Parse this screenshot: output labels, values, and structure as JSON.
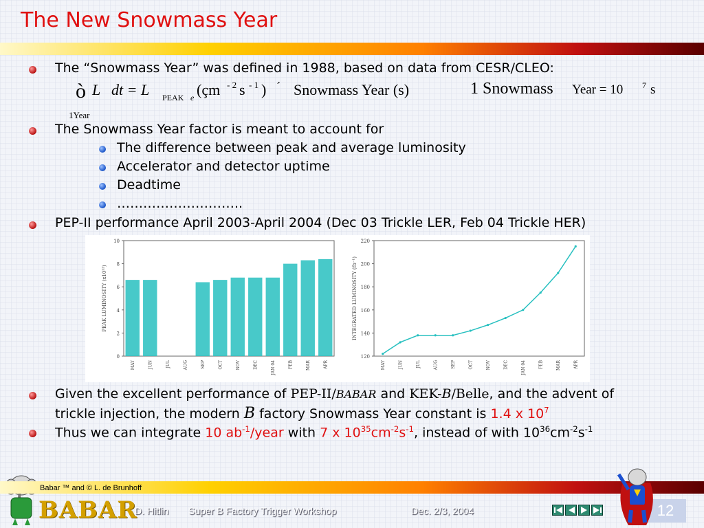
{
  "title": "The New Snowmass Year",
  "bullets": {
    "b1": "The “Snowmass Year” was defined in 1988, based on data from CESR/CLEO:",
    "formula": {
      "integral": "ò",
      "L": "L",
      "dt": "dt = L",
      "peak": "PEAK",
      "e": "e",
      "units": "(çm",
      "minus2": "- 2",
      "s": "s",
      "minus1": "- 1",
      "close": ")",
      "times": "´",
      "sy": "Snowmass Year (s)",
      "one_year": "1Year",
      "rhs_a": "1 Snowmass",
      "rhs_b": "Year = 10",
      "rhs_exp": "7",
      "rhs_c": "s"
    },
    "b2": "The Snowmass Year factor is meant to account for",
    "b2_sub": [
      "The difference between peak and average luminosity",
      "Accelerator and detector uptime",
      "Deadtime",
      "……………………….."
    ],
    "b3": "PEP-II performance April 2003-April 2004 (Dec 03 Trickle LER, Feb 04 Trickle HER)",
    "b4": {
      "p1": "Given the excellent performance of",
      "pep": "PEP-II/",
      "babar": "BABAR",
      "p2": "and",
      "kek": "KEK-",
      "kekb": "B",
      "belle": "/Belle",
      "p3": ", and the advent of",
      "line2_a": "trickle injection, the modern",
      "B": "B",
      "line2_b": "factory Snowmass Year constant is",
      "const": "1.4 x 10",
      "const_exp": "7"
    },
    "b5": {
      "p1": "Thus we can integrate",
      "val1": "10 ab",
      "val1_exp": "-1",
      "val1_b": "/year",
      "p2": "with",
      "val2": "7 x 10",
      "val2_exp": "35",
      "val2_b": "cm",
      "val2_exp2": "-2",
      "val2_c": "s",
      "val2_exp3": "-1",
      "p3": ", instead of with 10",
      "p3_exp": "36",
      "p3_b": "cm",
      "p3_exp2": "-2",
      "p3_c": "s",
      "p3_exp3": "-1"
    }
  },
  "chart_data": [
    {
      "type": "bar",
      "ylabel": "PEAK LUMINOSITY (x10³³)",
      "ylim": [
        0,
        10
      ],
      "yticks": [
        "10",
        "8",
        "6",
        "4",
        "2",
        "0"
      ],
      "categories": [
        "MAY",
        "JUN",
        "JUL",
        "AUG",
        "SEP",
        "OCT",
        "NOV",
        "DEC",
        "JAN 04",
        "FEB",
        "MAR",
        "APR"
      ],
      "values": [
        6.6,
        6.6,
        0,
        0,
        6.4,
        6.6,
        6.8,
        6.8,
        6.8,
        8.0,
        8.3,
        8.4
      ],
      "color": "#28c0c0"
    },
    {
      "type": "line",
      "ylabel": "INTEGRATED LUMINOSITY (fb⁻¹)",
      "ylim": [
        120,
        220
      ],
      "yticks": [
        "220",
        "200",
        "180",
        "160",
        "140",
        "120"
      ],
      "categories": [
        "MAY",
        "JUN",
        "JUL",
        "AUG",
        "SEP",
        "OCT",
        "NOV",
        "DEC",
        "JAN 04",
        "FEB",
        "MAR",
        "APR"
      ],
      "values": [
        122,
        132,
        138,
        138,
        138,
        142,
        147,
        153,
        160,
        175,
        192,
        215
      ],
      "color": "#28c0c0"
    }
  ],
  "footer": {
    "credit": "Babar ™ and © L. de Brunhoff",
    "logo": "BABAR",
    "author": "D. Hitlin",
    "event": "Super B Factory Trigger Workshop",
    "date": "Dec. 2/3, 2004",
    "page": "12",
    "nav": [
      "first",
      "prev",
      "next",
      "last"
    ]
  }
}
